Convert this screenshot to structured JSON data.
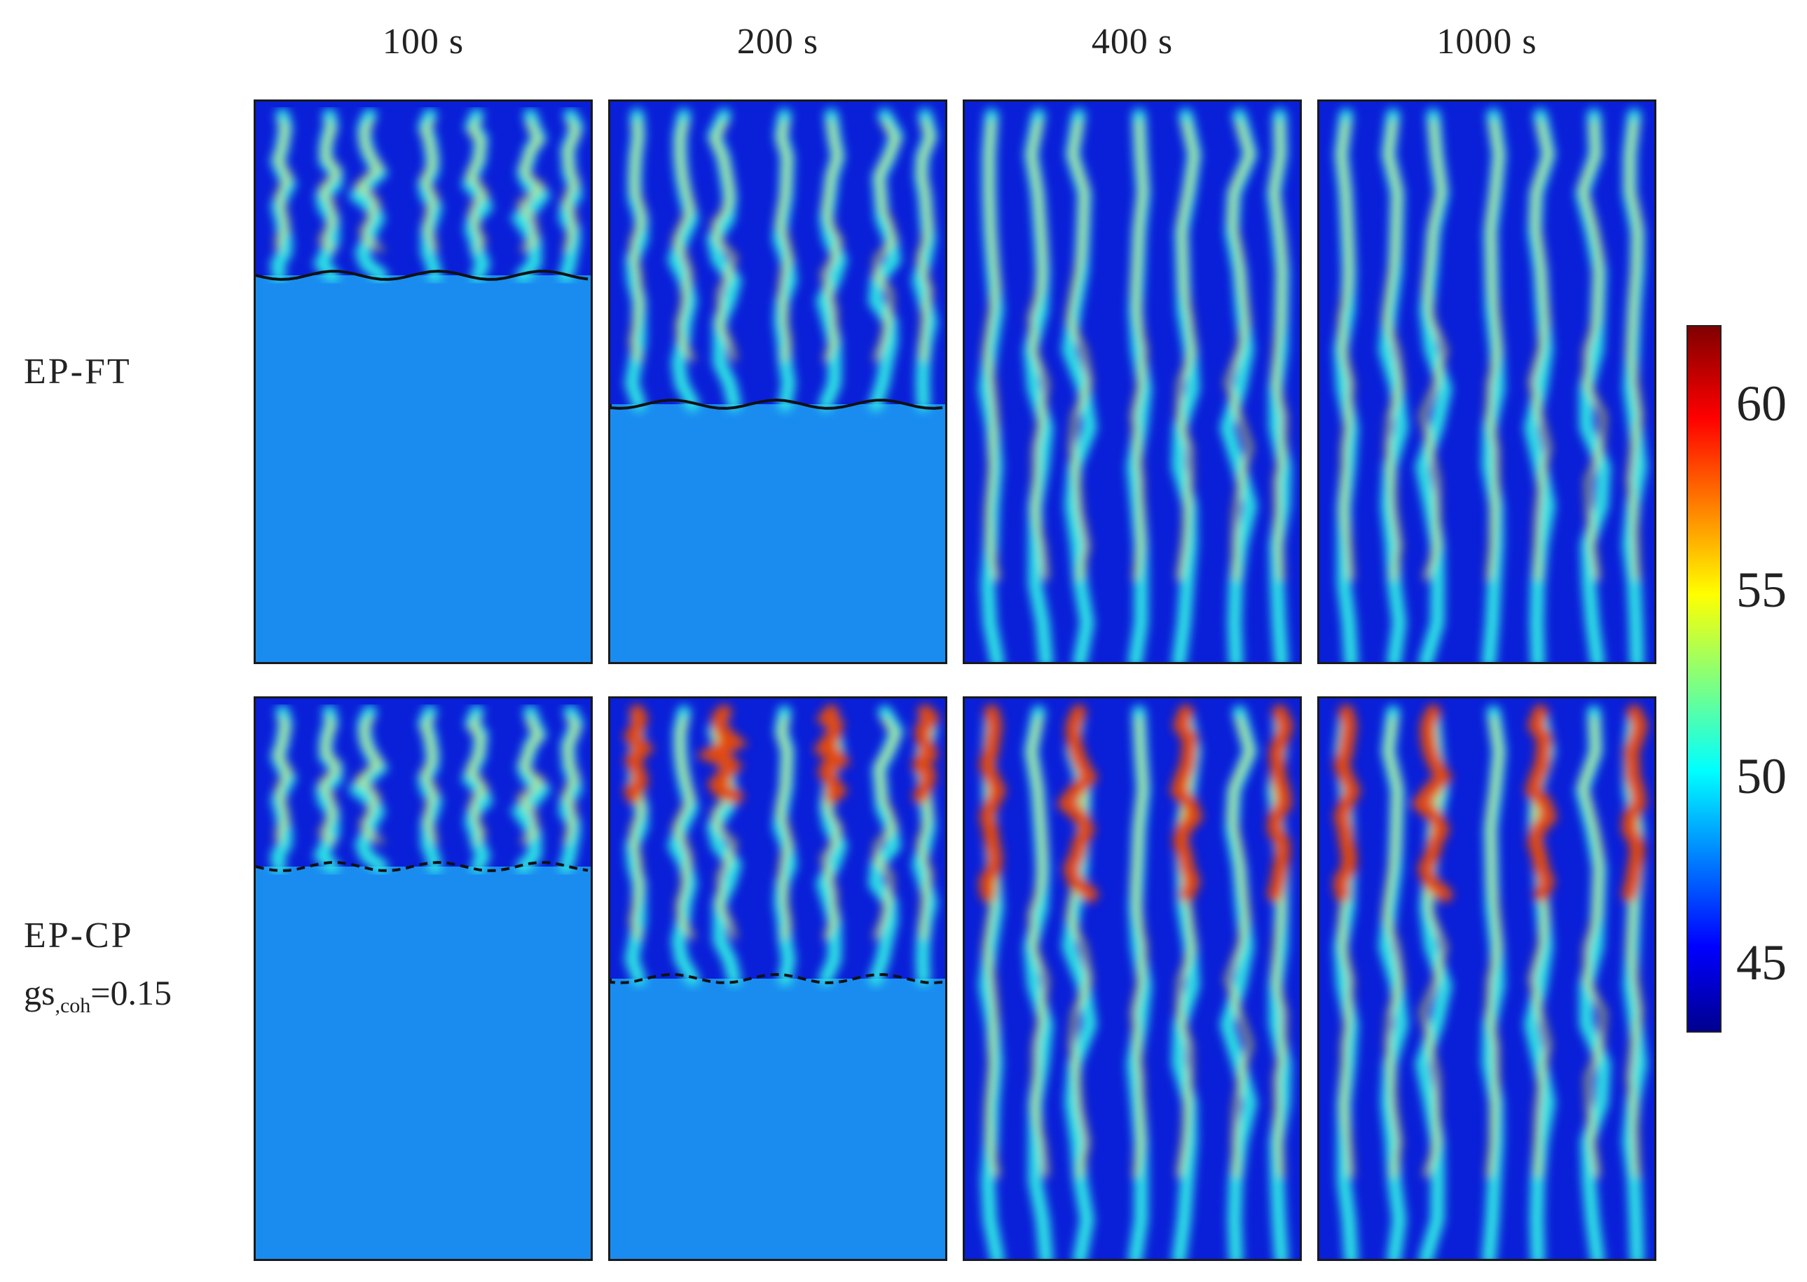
{
  "columns": [
    "100 s",
    "200 s",
    "400 s",
    "1000 s"
  ],
  "rows": [
    {
      "label": "EP-FT",
      "sub_main": "",
      "sub_index": "",
      "sub_value": "",
      "contour_style": "solid"
    },
    {
      "label": "EP-CP",
      "sub_main": "gs",
      "sub_index": ",coh",
      "sub_value": "=0.15",
      "contour_style": "dashed"
    }
  ],
  "colorbar": {
    "ticks": [
      "60",
      "55",
      "50",
      "45"
    ],
    "tick_values": [
      60,
      55,
      50,
      45
    ],
    "range": [
      43,
      62
    ],
    "colormap": "jet"
  },
  "colors": {
    "base_fill": "#1a8cf0",
    "background_dark": "#0a1fd8",
    "channel_mid": "#2ee6e6",
    "channel_hot": "#e8e82a",
    "channel_peak": "#e24a10",
    "contour": "#111111"
  }
}
